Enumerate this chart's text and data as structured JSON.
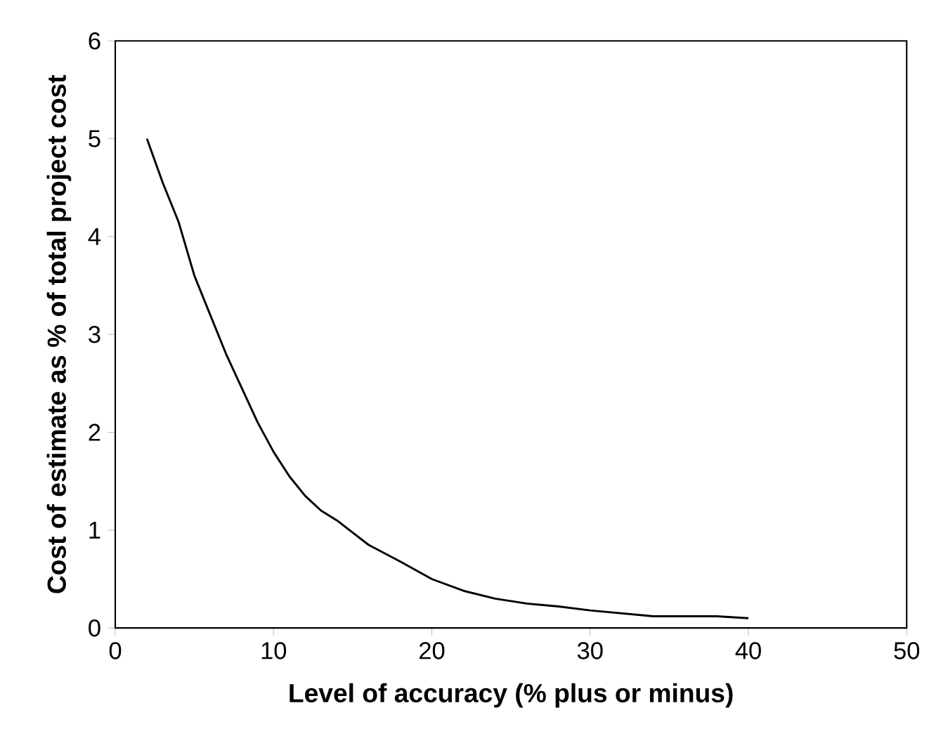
{
  "chart_data": {
    "type": "line",
    "xlabel": "Level of accuracy (% plus or minus)",
    "ylabel": "Cost of estimate as % of total project cost",
    "x": [
      2,
      3,
      4,
      5,
      6,
      7,
      8,
      9,
      10,
      11,
      12,
      13,
      14,
      16,
      18,
      20,
      22,
      24,
      26,
      28,
      30,
      32,
      34,
      36,
      38,
      40
    ],
    "series": [
      {
        "color": "#000000",
        "values": [
          5.0,
          4.55,
          4.15,
          3.6,
          3.2,
          2.8,
          2.45,
          2.1,
          1.8,
          1.55,
          1.35,
          1.2,
          1.1,
          0.85,
          0.68,
          0.5,
          0.38,
          0.3,
          0.25,
          0.22,
          0.18,
          0.15,
          0.12,
          0.12,
          0.12,
          0.1
        ]
      }
    ],
    "xlim": [
      0,
      50
    ],
    "ylim": [
      0,
      6
    ],
    "xticks": [
      0,
      10,
      20,
      30,
      40,
      50
    ],
    "yticks": [
      0,
      1,
      2,
      3,
      4,
      5,
      6
    ],
    "grid": false,
    "marker": "none",
    "line_style": "solid"
  }
}
